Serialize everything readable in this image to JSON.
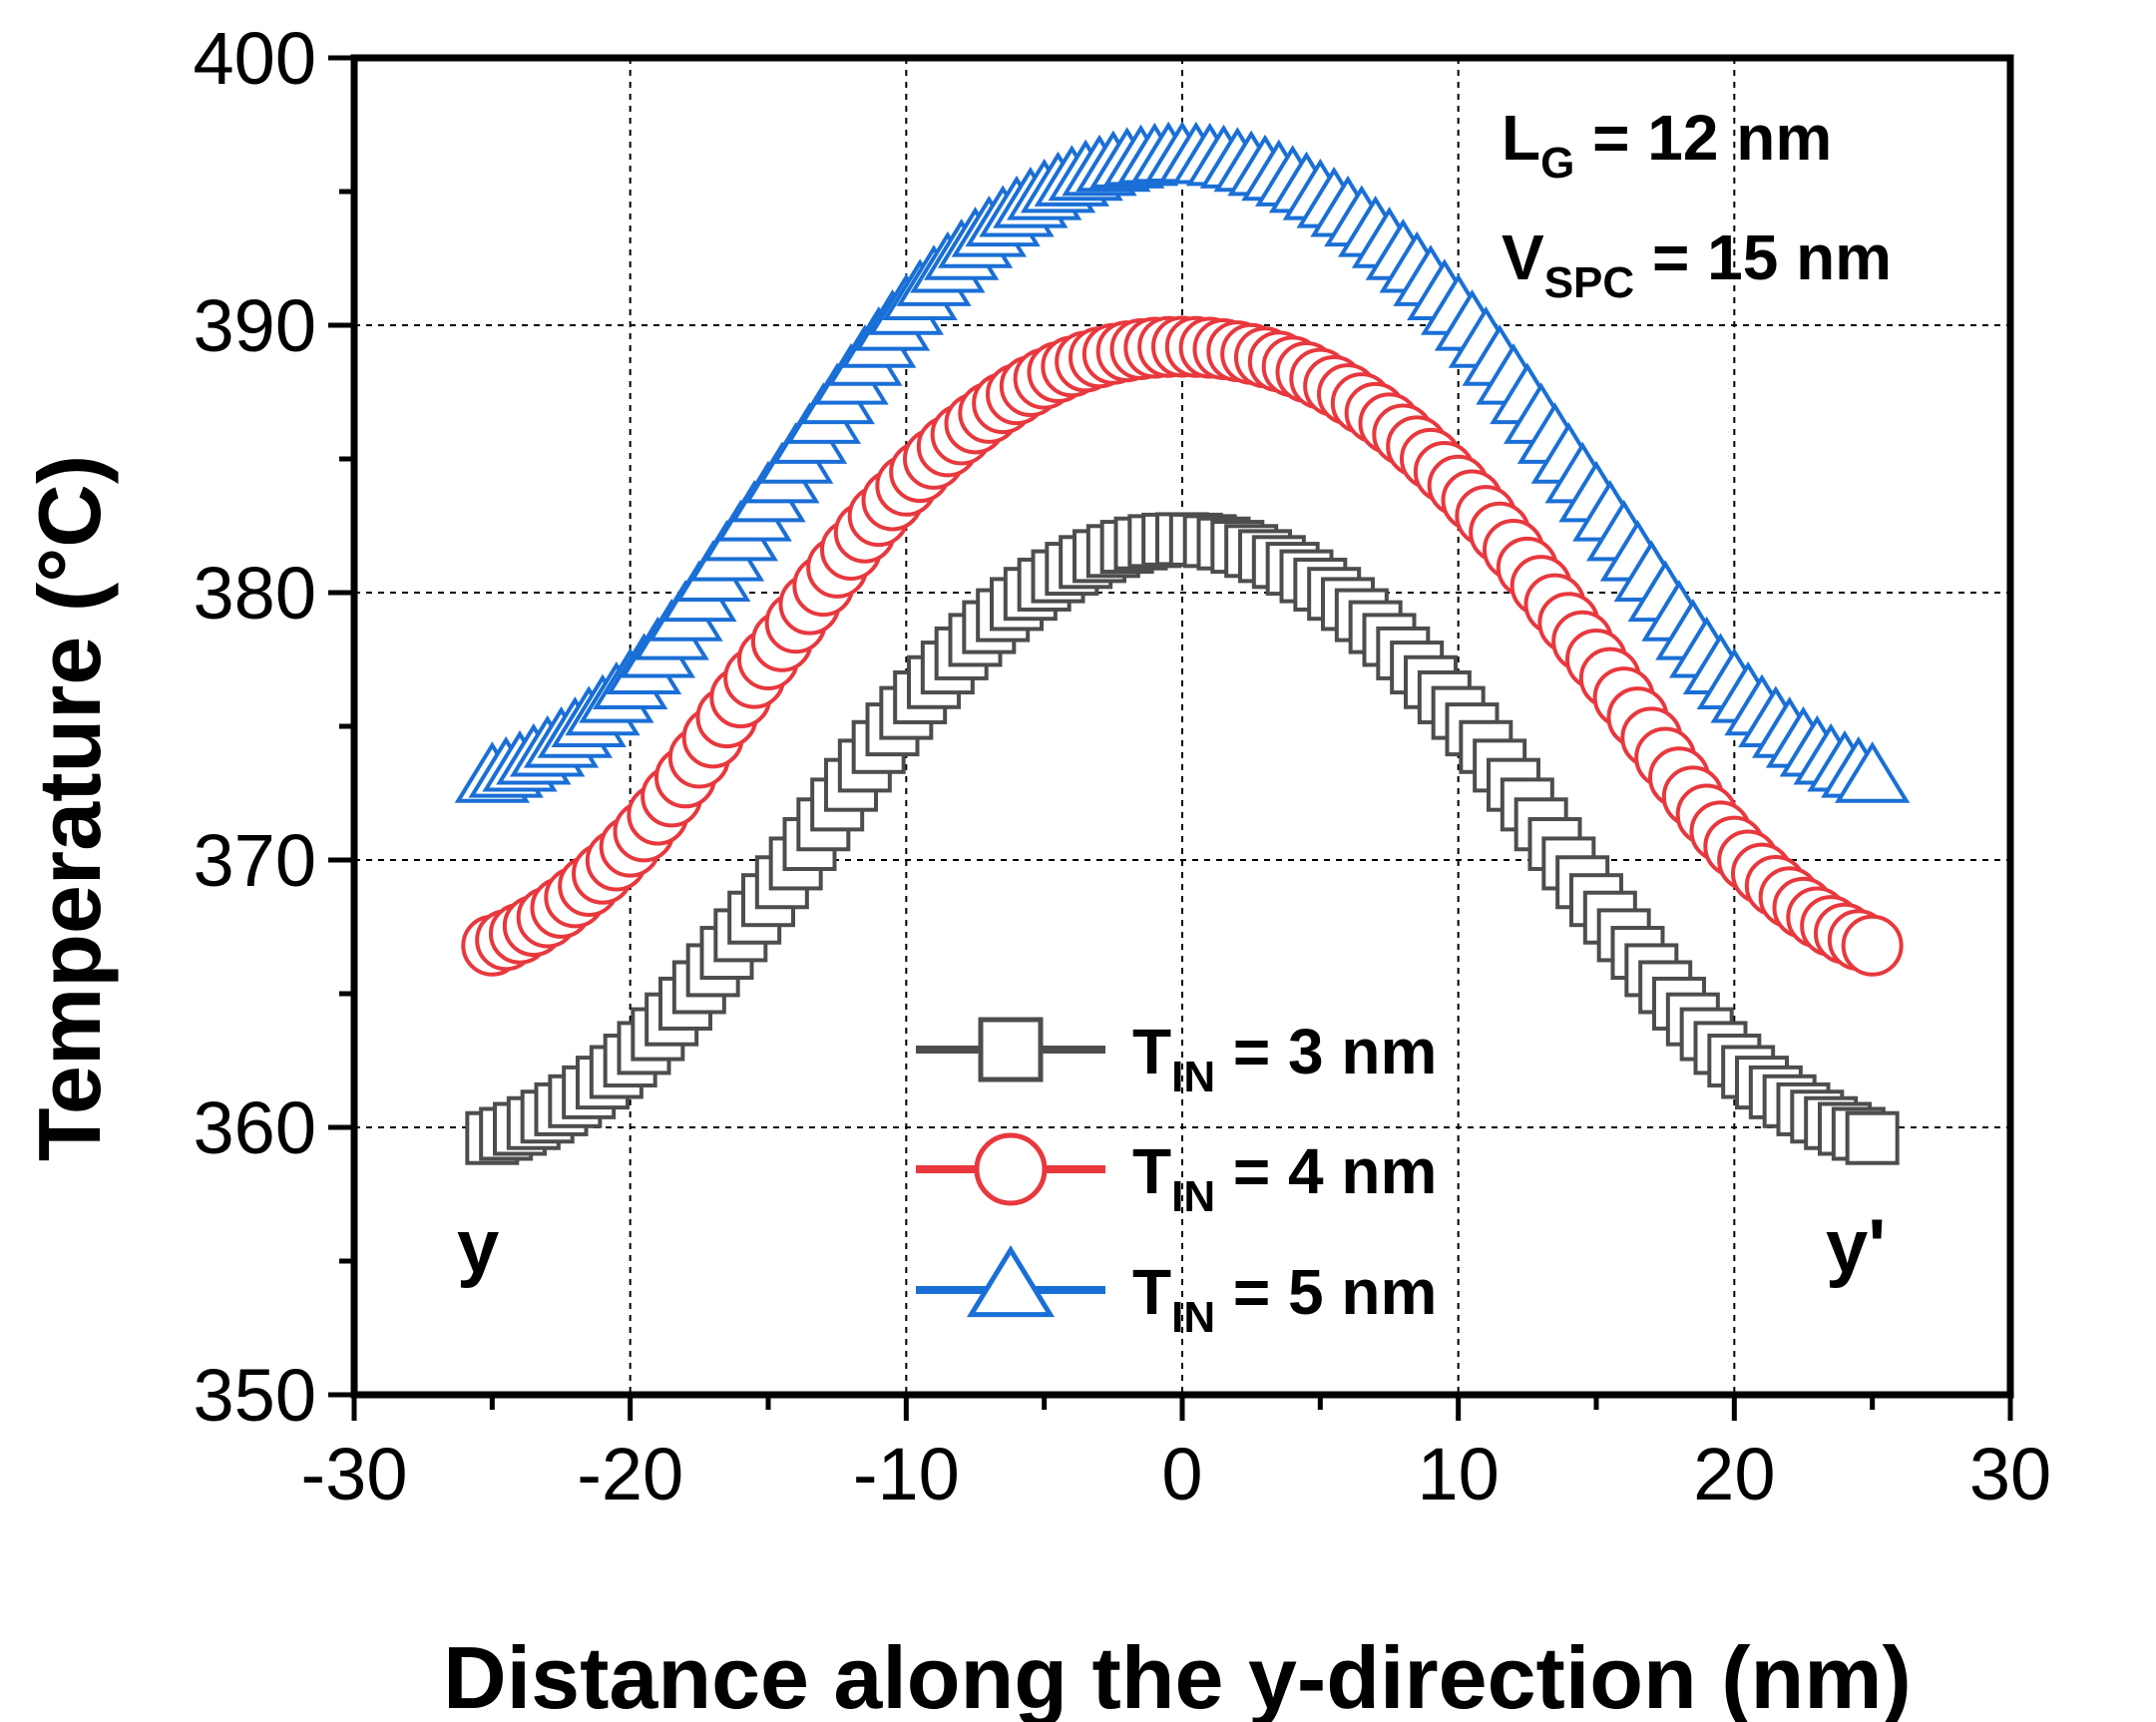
{
  "chart_data": {
    "type": "scatter",
    "title": "",
    "xlabel": "Distance along the y-direction (nm)",
    "ylabel": "Temperature (°C)",
    "xlim": [
      -30,
      30
    ],
    "ylim": [
      350,
      400
    ],
    "xticks": [
      "-30",
      "-20",
      "-10",
      "0",
      "10",
      "20",
      "30"
    ],
    "yticks": [
      "350",
      "360",
      "370",
      "380",
      "390",
      "400"
    ],
    "grid": true,
    "legend_position": "bottom-center",
    "annotations": {
      "lg": {
        "main": "L",
        "sub": "G",
        "rest": " = 12 nm"
      },
      "vspc": {
        "main": "V",
        "sub": "SPC",
        "rest": " = 15 nm"
      },
      "left_end": "y",
      "right_end": "y'"
    },
    "series": [
      {
        "name": "T_IN = 3 nm",
        "legend": {
          "main": "T",
          "sub": "IN",
          "rest": " = 3 nm"
        },
        "marker": "square",
        "color": "#4d4d4d",
        "x": [
          -25,
          -20,
          -15,
          -10,
          -5,
          0,
          5,
          10,
          15,
          20,
          25
        ],
        "y": [
          359.6,
          362.5,
          368.5,
          375.5,
          380.3,
          382.0,
          380.3,
          375.5,
          368.5,
          362.5,
          359.6
        ]
      },
      {
        "name": "T_IN = 4 nm",
        "legend": {
          "main": "T",
          "sub": "IN",
          "rest": " = 4 nm"
        },
        "marker": "circle",
        "color": "#e8383d",
        "x": [
          -25,
          -20,
          -15,
          -10,
          -5,
          0,
          5,
          10,
          15,
          20,
          25
        ],
        "y": [
          366.8,
          370.5,
          377.5,
          384.0,
          388.0,
          389.2,
          388.0,
          384.0,
          377.5,
          370.5,
          366.8
        ]
      },
      {
        "name": "T_IN = 5 nm",
        "legend": {
          "main": "T",
          "sub": "IN",
          "rest": " = 5 nm"
        },
        "marker": "triangle",
        "color": "#1a6fd6",
        "x": [
          -25,
          -20,
          -15,
          -10,
          -5,
          0,
          5,
          10,
          15,
          20,
          25
        ],
        "y": [
          373.0,
          376.5,
          383.5,
          390.5,
          394.8,
          396.2,
          394.8,
          390.5,
          383.5,
          376.5,
          373.0
        ]
      }
    ]
  }
}
